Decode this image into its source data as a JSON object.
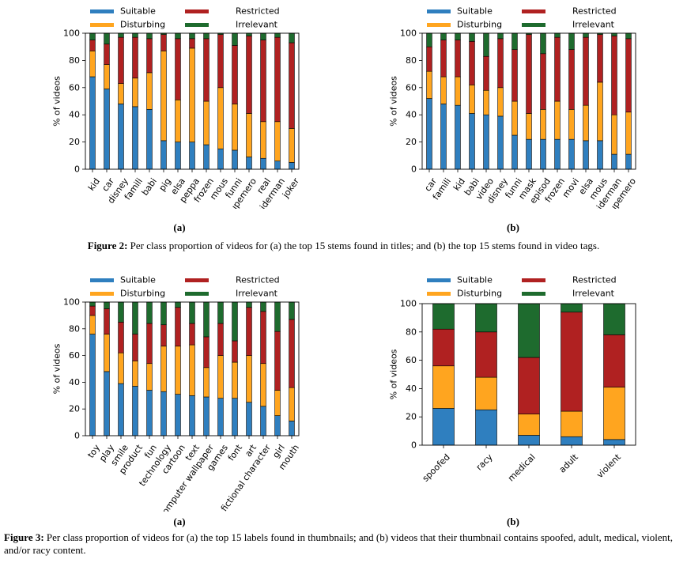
{
  "figures": [
    {
      "sublabels": [
        "(a)",
        "(b)"
      ],
      "caption_label": "Figure 2:",
      "caption_text": "Per class proportion of videos for (a) the top 15 stems found in titles; and (b) the top 15 stems found in video tags."
    },
    {
      "sublabels": [
        "(a)",
        "(b)"
      ],
      "caption_label": "Figure 3:",
      "caption_text": "Per class proportion of videos for (a) the top 15 labels found in thumbnails; and (b) videos that their thumbnail contains spoofed, adult, medical, violent, and/or racy content."
    }
  ],
  "colors": {
    "Suitable": "#2f7fbf",
    "Disturbing": "#ffa51f",
    "Restricted": "#b02121",
    "Irrelevant": "#1e6b2e"
  },
  "chart_data": [
    {
      "id": "fig2a",
      "type": "bar",
      "stacked": true,
      "categories": [
        "kid",
        "car",
        "disney",
        "famili",
        "babi",
        "pig",
        "elsa",
        "peppa",
        "frozen",
        "mous",
        "funni",
        "supemero",
        "real",
        "spiderman",
        "joker"
      ],
      "series": [
        {
          "name": "Suitable",
          "values": [
            68,
            59,
            48,
            46,
            44,
            21,
            20,
            20,
            18,
            15,
            14,
            9,
            8,
            6,
            5
          ]
        },
        {
          "name": "Disturbing",
          "values": [
            19,
            18,
            15,
            21,
            27,
            66,
            31,
            69,
            32,
            45,
            34,
            32,
            27,
            29,
            25
          ]
        },
        {
          "name": "Restricted",
          "values": [
            8,
            15,
            34,
            30,
            25,
            12,
            45,
            7,
            46,
            39,
            43,
            57,
            60,
            62,
            63
          ]
        },
        {
          "name": "Irrelevant",
          "values": [
            5,
            8,
            3,
            3,
            4,
            1,
            4,
            4,
            4,
            1,
            9,
            2,
            5,
            3,
            7
          ]
        }
      ],
      "legend": [
        "Suitable",
        "Restricted",
        "Disturbing",
        "Irrelevant"
      ],
      "ylabel": "% of videos",
      "ylim": [
        0,
        100
      ],
      "yticks": [
        "0",
        "20",
        "40",
        "60",
        "80",
        "100"
      ]
    },
    {
      "id": "fig2b",
      "type": "bar",
      "stacked": true,
      "categories": [
        "car",
        "famili",
        "kid",
        "babi",
        "video",
        "disney",
        "funni",
        "mask",
        "episod",
        "frozen",
        "movi",
        "elsa",
        "mous",
        "spiderman",
        "supemero"
      ],
      "series": [
        {
          "name": "Suitable",
          "values": [
            52,
            48,
            47,
            41,
            40,
            39,
            25,
            22,
            22,
            22,
            22,
            21,
            21,
            11,
            11
          ]
        },
        {
          "name": "Disturbing",
          "values": [
            20,
            20,
            21,
            21,
            18,
            21,
            25,
            19,
            22,
            28,
            22,
            26,
            43,
            29,
            31
          ]
        },
        {
          "name": "Restricted",
          "values": [
            18,
            27,
            27,
            32,
            25,
            36,
            38,
            58,
            41,
            47,
            44,
            50,
            35,
            58,
            54
          ]
        },
        {
          "name": "Irrelevant",
          "values": [
            10,
            5,
            5,
            6,
            17,
            4,
            12,
            1,
            15,
            3,
            12,
            3,
            1,
            2,
            4
          ]
        }
      ],
      "legend": [
        "Suitable",
        "Restricted",
        "Disturbing",
        "Irrelevant"
      ],
      "ylabel": "% of videos",
      "ylim": [
        0,
        100
      ],
      "yticks": [
        "0",
        "20",
        "40",
        "60",
        "80",
        "100"
      ]
    },
    {
      "id": "fig3a",
      "type": "bar",
      "stacked": true,
      "categories": [
        "toy",
        "play",
        "smile",
        "product",
        "fun",
        "technology",
        "cartoon",
        "text",
        "computer wallpaper",
        "games",
        "font",
        "art",
        "fictional character",
        "girl",
        "mouth"
      ],
      "series": [
        {
          "name": "Suitable",
          "values": [
            76,
            48,
            39,
            37,
            34,
            33,
            31,
            30,
            29,
            28,
            28,
            25,
            22,
            15,
            11
          ]
        },
        {
          "name": "Disturbing",
          "values": [
            14,
            28,
            23,
            19,
            20,
            34,
            36,
            38,
            22,
            32,
            27,
            35,
            32,
            19,
            25
          ]
        },
        {
          "name": "Restricted",
          "values": [
            7,
            19,
            23,
            20,
            30,
            16,
            29,
            16,
            23,
            24,
            16,
            36,
            39,
            44,
            51
          ]
        },
        {
          "name": "Irrelevant",
          "values": [
            3,
            5,
            15,
            24,
            16,
            17,
            4,
            16,
            26,
            16,
            29,
            4,
            7,
            22,
            13
          ]
        }
      ],
      "legend": [
        "Suitable",
        "Restricted",
        "Disturbing",
        "Irrelevant"
      ],
      "ylabel": "% of videos",
      "ylim": [
        0,
        100
      ],
      "yticks": [
        "0",
        "20",
        "40",
        "60",
        "80",
        "100"
      ]
    },
    {
      "id": "fig3b",
      "type": "bar",
      "stacked": true,
      "categories": [
        "spoofed",
        "racy",
        "medical",
        "adult",
        "violent"
      ],
      "series": [
        {
          "name": "Suitable",
          "values": [
            26,
            25,
            7,
            6,
            4
          ]
        },
        {
          "name": "Disturbing",
          "values": [
            30,
            23,
            15,
            18,
            37
          ]
        },
        {
          "name": "Restricted",
          "values": [
            26,
            32,
            40,
            70,
            37
          ]
        },
        {
          "name": "Irrelevant",
          "values": [
            18,
            20,
            38,
            6,
            22
          ]
        }
      ],
      "legend": [
        "Suitable",
        "Restricted",
        "Disturbing",
        "Irrelevant"
      ],
      "ylabel": "% of videos",
      "ylim": [
        0,
        100
      ],
      "yticks": [
        "0",
        "20",
        "40",
        "60",
        "80",
        "100"
      ]
    }
  ]
}
